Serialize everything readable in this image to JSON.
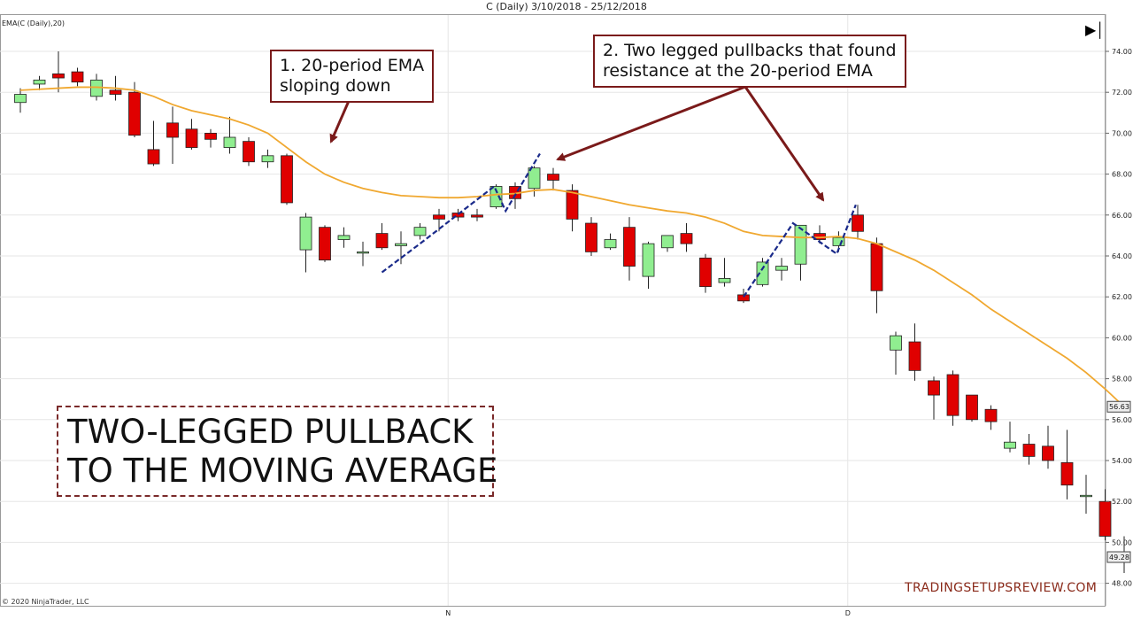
{
  "window": {
    "title": "C (Daily)  3/10/2018 - 25/12/2018",
    "indicator_label": "EMA(C (Daily),20)",
    "copyright": "© 2020 NinjaTrader, LLC",
    "brand": "TRADINGSETUPSREVIEW.COM",
    "skip_icon": "skip-to-end-icon"
  },
  "annotations": {
    "ema_note": "1. 20-period EMA\nsloping down",
    "pullback_note": "2. Two legged pullbacks that found\nresistance at the 20-period EMA",
    "headline": "TWO-LEGGED PULLBACK\nTO THE MOVING AVERAGE"
  },
  "colors": {
    "up": "#90ee90",
    "down": "#e00000",
    "ema": "#f0a830",
    "arrow": "#7a1a1a",
    "zigzag": "#1a2a8a",
    "grid": "#e6e6e6"
  },
  "chart_data": {
    "type": "candlestick",
    "symbol": "C",
    "timeframe": "Daily",
    "x_labels": [
      {
        "label": "N",
        "index": 22
      },
      {
        "label": "D",
        "index": 43
      }
    ],
    "ylim": [
      47.0,
      75.5
    ],
    "yticks": [
      48,
      50,
      52,
      54,
      56,
      58,
      60,
      62,
      64,
      66,
      68,
      70,
      72,
      74
    ],
    "ytick_labels": [
      "48.00",
      "50.00",
      "52.00",
      "54.00",
      "56.00",
      "58.00",
      "60.00",
      "62.00",
      "64.00",
      "66.00",
      "68.00",
      "70.00",
      "72.00",
      "74.00"
    ],
    "price_tags": [
      {
        "label": "56.63",
        "value": 56.63
      },
      {
        "label": "49.28",
        "value": 49.28
      }
    ],
    "candles": [
      {
        "o": 71.5,
        "h": 72.2,
        "l": 71.0,
        "c": 71.9
      },
      {
        "o": 72.4,
        "h": 72.8,
        "l": 72.1,
        "c": 72.6
      },
      {
        "o": 72.9,
        "h": 74.0,
        "l": 72.0,
        "c": 72.7
      },
      {
        "o": 73.0,
        "h": 73.2,
        "l": 72.3,
        "c": 72.5
      },
      {
        "o": 71.8,
        "h": 72.9,
        "l": 71.6,
        "c": 72.6
      },
      {
        "o": 72.1,
        "h": 72.8,
        "l": 71.6,
        "c": 71.9
      },
      {
        "o": 72.0,
        "h": 72.5,
        "l": 69.8,
        "c": 69.9
      },
      {
        "o": 69.2,
        "h": 70.6,
        "l": 68.4,
        "c": 68.5
      },
      {
        "o": 70.5,
        "h": 71.3,
        "l": 68.5,
        "c": 69.8
      },
      {
        "o": 70.2,
        "h": 70.7,
        "l": 69.2,
        "c": 69.3
      },
      {
        "o": 70.0,
        "h": 70.2,
        "l": 69.3,
        "c": 69.7
      },
      {
        "o": 69.3,
        "h": 70.8,
        "l": 69.0,
        "c": 69.8
      },
      {
        "o": 69.6,
        "h": 69.8,
        "l": 68.4,
        "c": 68.6
      },
      {
        "o": 68.6,
        "h": 69.2,
        "l": 68.3,
        "c": 68.9
      },
      {
        "o": 68.9,
        "h": 69.0,
        "l": 66.5,
        "c": 66.6
      },
      {
        "o": 64.3,
        "h": 66.1,
        "l": 63.2,
        "c": 65.9
      },
      {
        "o": 65.4,
        "h": 65.5,
        "l": 63.7,
        "c": 63.8
      },
      {
        "o": 64.8,
        "h": 65.4,
        "l": 64.4,
        "c": 65.0
      },
      {
        "o": 64.2,
        "h": 64.7,
        "l": 63.5,
        "c": 64.2
      },
      {
        "o": 65.1,
        "h": 65.6,
        "l": 64.3,
        "c": 64.4
      },
      {
        "o": 64.5,
        "h": 65.2,
        "l": 63.6,
        "c": 64.6
      },
      {
        "o": 65.0,
        "h": 65.6,
        "l": 64.8,
        "c": 65.4
      },
      {
        "o": 66.0,
        "h": 66.3,
        "l": 65.2,
        "c": 65.8
      },
      {
        "o": 66.1,
        "h": 66.3,
        "l": 65.7,
        "c": 65.9
      },
      {
        "o": 66.0,
        "h": 66.3,
        "l": 65.7,
        "c": 65.9
      },
      {
        "o": 66.4,
        "h": 67.5,
        "l": 66.3,
        "c": 67.4
      },
      {
        "o": 67.4,
        "h": 67.6,
        "l": 66.3,
        "c": 66.8
      },
      {
        "o": 67.3,
        "h": 68.4,
        "l": 66.9,
        "c": 68.3
      },
      {
        "o": 68.0,
        "h": 68.3,
        "l": 67.2,
        "c": 67.7
      },
      {
        "o": 67.2,
        "h": 67.5,
        "l": 65.2,
        "c": 65.8
      },
      {
        "o": 65.6,
        "h": 65.9,
        "l": 64.0,
        "c": 64.2
      },
      {
        "o": 64.4,
        "h": 65.1,
        "l": 64.3,
        "c": 64.8
      },
      {
        "o": 65.4,
        "h": 65.9,
        "l": 62.8,
        "c": 63.5
      },
      {
        "o": 63.0,
        "h": 64.7,
        "l": 62.4,
        "c": 64.6
      },
      {
        "o": 64.4,
        "h": 65.0,
        "l": 64.2,
        "c": 65.0
      },
      {
        "o": 65.1,
        "h": 65.6,
        "l": 64.2,
        "c": 64.6
      },
      {
        "o": 63.9,
        "h": 64.1,
        "l": 62.2,
        "c": 62.5
      },
      {
        "o": 62.7,
        "h": 63.9,
        "l": 62.5,
        "c": 62.9
      },
      {
        "o": 62.1,
        "h": 62.4,
        "l": 61.7,
        "c": 61.8
      },
      {
        "o": 62.6,
        "h": 63.9,
        "l": 62.5,
        "c": 63.7
      },
      {
        "o": 63.3,
        "h": 63.9,
        "l": 62.8,
        "c": 63.5
      },
      {
        "o": 63.6,
        "h": 65.5,
        "l": 62.8,
        "c": 65.5
      },
      {
        "o": 65.1,
        "h": 65.5,
        "l": 64.6,
        "c": 64.8
      },
      {
        "o": 64.5,
        "h": 65.2,
        "l": 64.2,
        "c": 64.9
      },
      {
        "o": 66.0,
        "h": 66.5,
        "l": 64.8,
        "c": 65.2
      },
      {
        "o": 64.6,
        "h": 64.9,
        "l": 61.2,
        "c": 62.3
      },
      {
        "o": 59.4,
        "h": 60.3,
        "l": 58.2,
        "c": 60.1
      },
      {
        "o": 59.8,
        "h": 60.7,
        "l": 57.9,
        "c": 58.4
      },
      {
        "o": 57.9,
        "h": 58.1,
        "l": 56.0,
        "c": 57.2
      },
      {
        "o": 58.2,
        "h": 58.4,
        "l": 55.7,
        "c": 56.2
      },
      {
        "o": 57.2,
        "h": 57.2,
        "l": 55.9,
        "c": 56.0
      },
      {
        "o": 56.5,
        "h": 56.7,
        "l": 55.5,
        "c": 55.9
      },
      {
        "o": 54.6,
        "h": 55.9,
        "l": 54.4,
        "c": 54.9
      },
      {
        "o": 54.8,
        "h": 55.3,
        "l": 53.8,
        "c": 54.2
      },
      {
        "o": 54.7,
        "h": 55.7,
        "l": 53.6,
        "c": 54.0
      },
      {
        "o": 53.9,
        "h": 55.5,
        "l": 52.1,
        "c": 52.8
      },
      {
        "o": 52.3,
        "h": 53.3,
        "l": 51.4,
        "c": 52.3
      },
      {
        "o": 52.0,
        "h": 52.6,
        "l": 50.1,
        "c": 50.3
      },
      {
        "o": 49.4,
        "h": 50.3,
        "l": 48.5,
        "c": 49.3
      }
    ],
    "ema_20": [
      72.1,
      72.15,
      72.2,
      72.25,
      72.25,
      72.2,
      72.1,
      71.8,
      71.4,
      71.1,
      70.9,
      70.7,
      70.4,
      70.0,
      69.3,
      68.6,
      68.0,
      67.6,
      67.3,
      67.1,
      66.95,
      66.9,
      66.85,
      66.85,
      66.9,
      67.0,
      67.05,
      67.2,
      67.25,
      67.1,
      66.9,
      66.7,
      66.5,
      66.35,
      66.2,
      66.1,
      65.9,
      65.6,
      65.2,
      65.0,
      64.95,
      64.9,
      64.9,
      64.95,
      64.85,
      64.6,
      64.2,
      63.8,
      63.3,
      62.7,
      62.1,
      61.4,
      60.8,
      60.2,
      59.6,
      59.0,
      58.3,
      57.5,
      56.63
    ],
    "zigzag_1": [
      [
        19,
        63.2
      ],
      [
        21,
        64.6
      ],
      [
        24.9,
        67.4
      ],
      [
        25.5,
        66.2
      ],
      [
        27.3,
        69.0
      ]
    ],
    "zigzag_2": [
      [
        38,
        62.0
      ],
      [
        40.6,
        65.6
      ],
      [
        42.9,
        64.1
      ],
      [
        43.9,
        66.5
      ]
    ]
  }
}
